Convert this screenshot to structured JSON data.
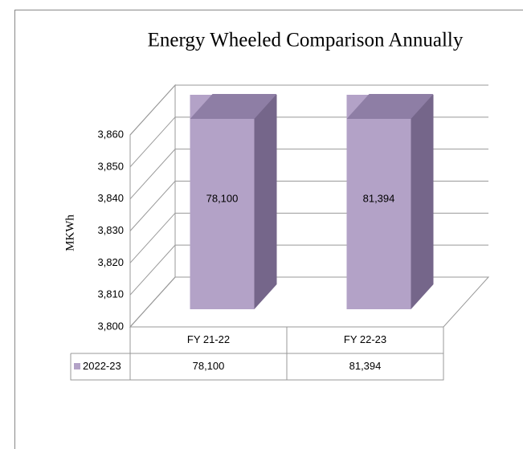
{
  "chart_data": {
    "type": "bar3d",
    "title": "Energy Wheeled Comparison Annually",
    "y_label": "MKWh",
    "categories": [
      "FY 21-22",
      "FY 22-23"
    ],
    "series": [
      {
        "name": "2022-23",
        "color": "#b3a2c7",
        "values": [
          78100,
          81394
        ],
        "value_labels": [
          "78,100",
          "81,394"
        ]
      }
    ],
    "ylim": [
      3800,
      3860
    ],
    "yticks": [
      {
        "value": 3800,
        "label": "3,800"
      },
      {
        "value": 3810,
        "label": "3,810"
      },
      {
        "value": 3820,
        "label": "3,820"
      },
      {
        "value": 3830,
        "label": "3,830"
      },
      {
        "value": 3840,
        "label": "3,840"
      },
      {
        "value": 3850,
        "label": "3,850"
      },
      {
        "value": 3860,
        "label": "3,860"
      }
    ],
    "grid": true,
    "data_table": true
  }
}
